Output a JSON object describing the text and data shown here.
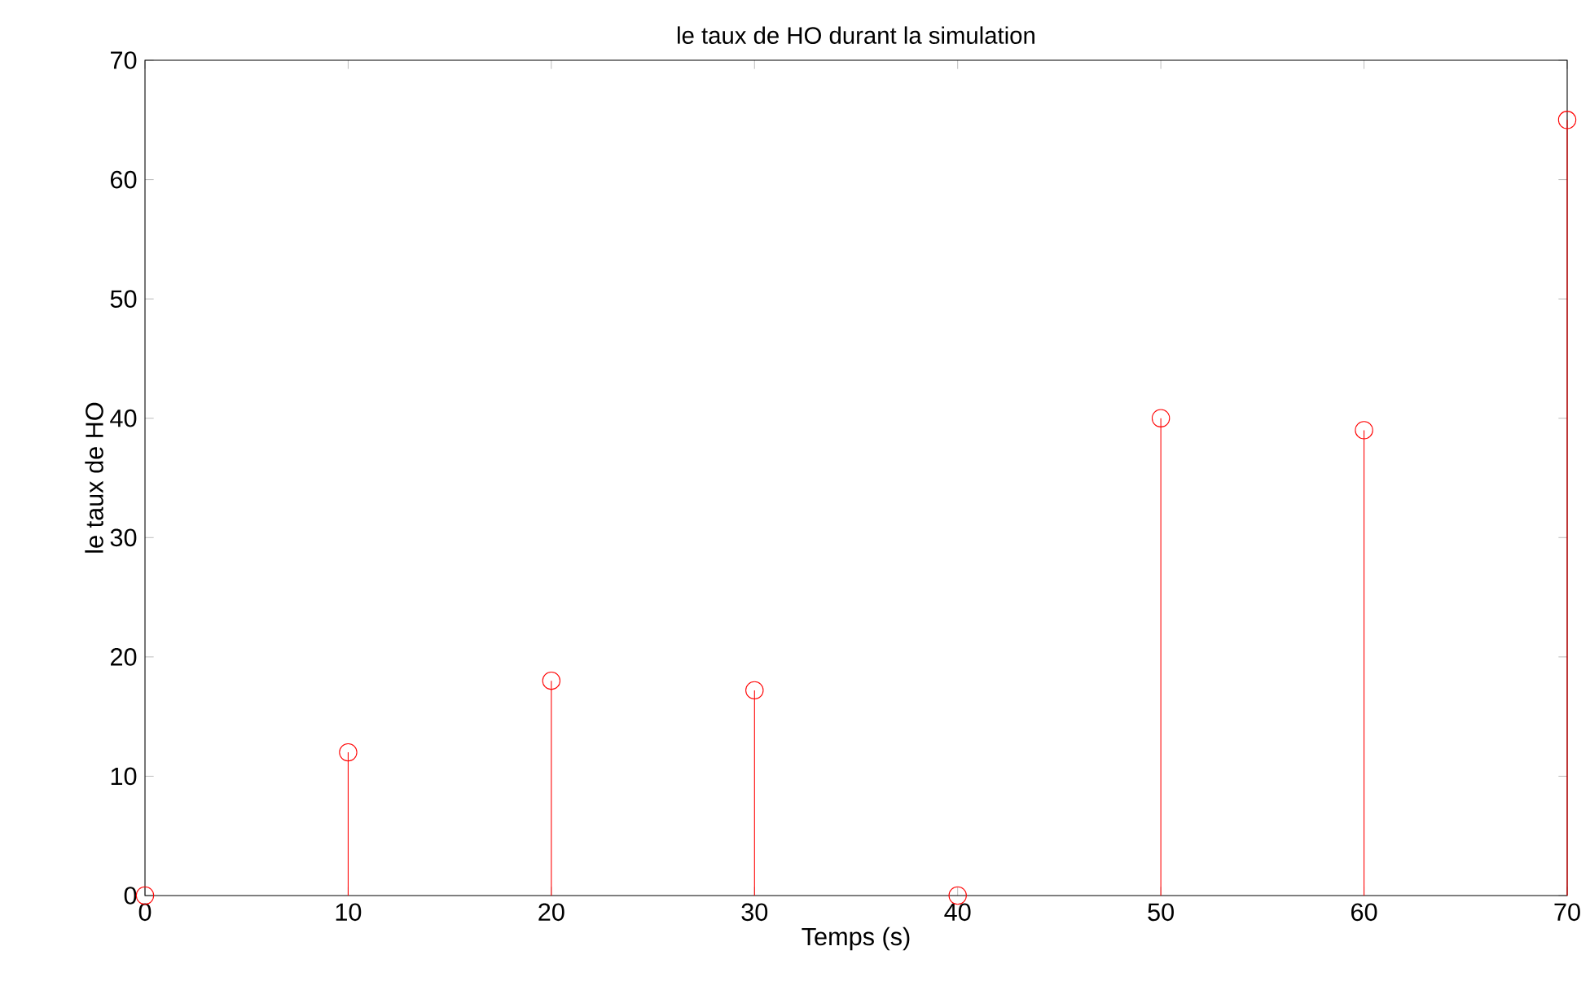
{
  "chart_data": {
    "type": "lollipop",
    "title": "le taux de HO durant la simulation",
    "xlabel": "Temps (s)",
    "ylabel": "le taux de HO",
    "x": [
      0,
      10,
      20,
      30,
      40,
      50,
      60,
      70
    ],
    "values": [
      0,
      12,
      18,
      17.2,
      0,
      40,
      39,
      65
    ],
    "color": "#ff0000",
    "marker": "circle",
    "xlim": [
      0,
      70
    ],
    "ylim": [
      0,
      70
    ],
    "xticks": [
      0,
      10,
      20,
      30,
      40,
      50,
      60,
      70
    ],
    "yticks": [
      0,
      10,
      20,
      30,
      40,
      50,
      60,
      70
    ]
  }
}
